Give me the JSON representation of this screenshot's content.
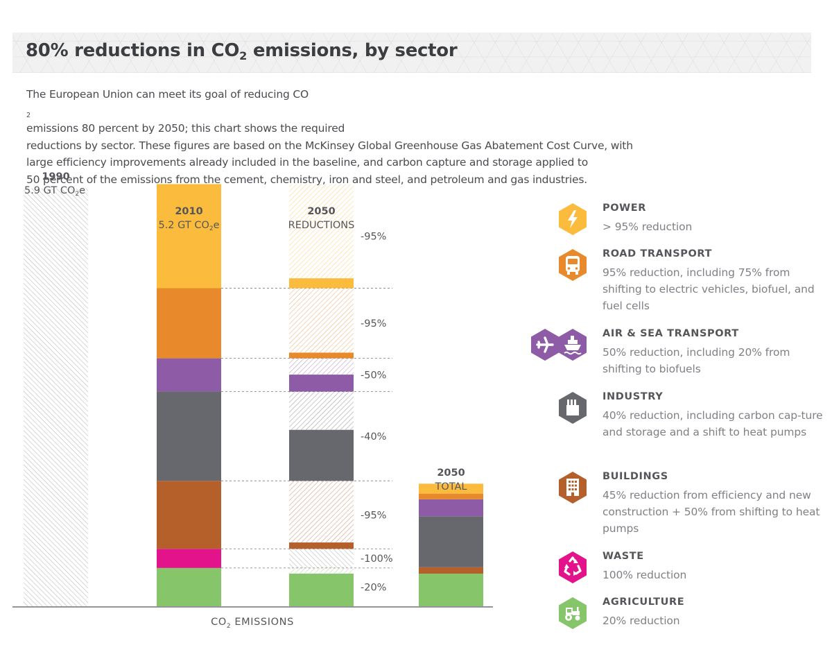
{
  "title": {
    "main": "80% reductions in CO",
    "sub": "2",
    "rest": " emissions, by sector"
  },
  "intro": {
    "l1a": "The European Union can meet its goal of reducing CO",
    "l1sub": "2",
    "l1b": " emissions 80 percent by 2050; this chart shows the required",
    "l2": "reductions by sector. These figures are based on the McKinsey Global Greenhouse Gas Abatement Cost Curve, with",
    "l3": "large efficiency improvements already included in the baseline, and carbon capture and storage applied to",
    "l4": "50 percent of the emissions from the cement, chemistry, iron and steel, and petroleum and gas industries."
  },
  "colors": {
    "power": "#fbbc3d",
    "road_transport": "#e8892b",
    "air_sea_transport": "#8e5ba6",
    "industry": "#66686d",
    "buildings": "#b55f2b",
    "waste": "#e3148b",
    "agriculture": "#86c56a",
    "hatch_gray": "#bcbcbc",
    "axis": "#55565a"
  },
  "chart_data": {
    "type": "bar",
    "units": "GT CO2e",
    "x_axis_label": "CO2 EMISSIONS",
    "columns": [
      {
        "id": "c1990",
        "label_year": "1990",
        "label_sub": "5.9 GT CO",
        "label_sub2": "2",
        "label_sub3": "e",
        "total": 5.9
      },
      {
        "id": "c2010",
        "label_year": "2010",
        "label_sub": "5.2 GT CO",
        "label_sub2": "2",
        "label_sub3": "e",
        "total": 5.2
      },
      {
        "id": "c2050r",
        "label_year": "2050",
        "label_sub": "REDUCTIONS"
      },
      {
        "id": "c2050t",
        "label_year": "2050",
        "label_sub": "TOTAL"
      }
    ],
    "sectors": [
      {
        "key": "power",
        "emissions_2010": 1.47,
        "reduction": "-95%",
        "remaining_2050": 0.14
      },
      {
        "key": "road_transport",
        "emissions_2010": 0.99,
        "reduction": "-95%",
        "remaining_2050": 0.08
      },
      {
        "key": "air_sea_transport",
        "emissions_2010": 0.47,
        "reduction": "-50%",
        "remaining_2050": 0.24
      },
      {
        "key": "industry",
        "emissions_2010": 1.26,
        "reduction": "-40%",
        "remaining_2050": 0.72
      },
      {
        "key": "buildings",
        "emissions_2010": 0.96,
        "reduction": "-95%",
        "remaining_2050": 0.09
      },
      {
        "key": "waste",
        "emissions_2010": 0.27,
        "reduction": "-100%",
        "remaining_2050": 0.0
      },
      {
        "key": "agriculture",
        "emissions_2010": 0.54,
        "reduction": "-20%",
        "remaining_2050": 0.46
      }
    ]
  },
  "legend": [
    {
      "key": "power",
      "icon": "lightning-icon",
      "name": "POWER",
      "desc": "> 95% reduction"
    },
    {
      "key": "road_transport",
      "icon": "bus-icon",
      "name": "ROAD TRANSPORT",
      "desc": "95% reduction, including 75% from shifting to electric vehicles, biofuel, and fuel cells"
    },
    {
      "key": "air_sea_transport",
      "icon": "airplane-icon",
      "icon2": "ship-icon",
      "name": "AIR & SEA TRANSPORT",
      "desc": "50% reduction, including 20% from shifting to biofuels"
    },
    {
      "key": "industry",
      "icon": "factory-icon",
      "name": "INDUSTRY",
      "desc": "40% reduction, including carbon cap-ture and storage and a shift to heat pumps"
    },
    {
      "key": "buildings",
      "icon": "building-icon",
      "name": "BUILDINGS",
      "desc": "45% reduction from efficiency and new construction + 50% from shifting to heat pumps"
    },
    {
      "key": "waste",
      "icon": "recycle-icon",
      "name": "WASTE",
      "desc": "100% reduction"
    },
    {
      "key": "agriculture",
      "icon": "tractor-icon",
      "name": "AGRICULTURE",
      "desc": "20% reduction"
    }
  ]
}
